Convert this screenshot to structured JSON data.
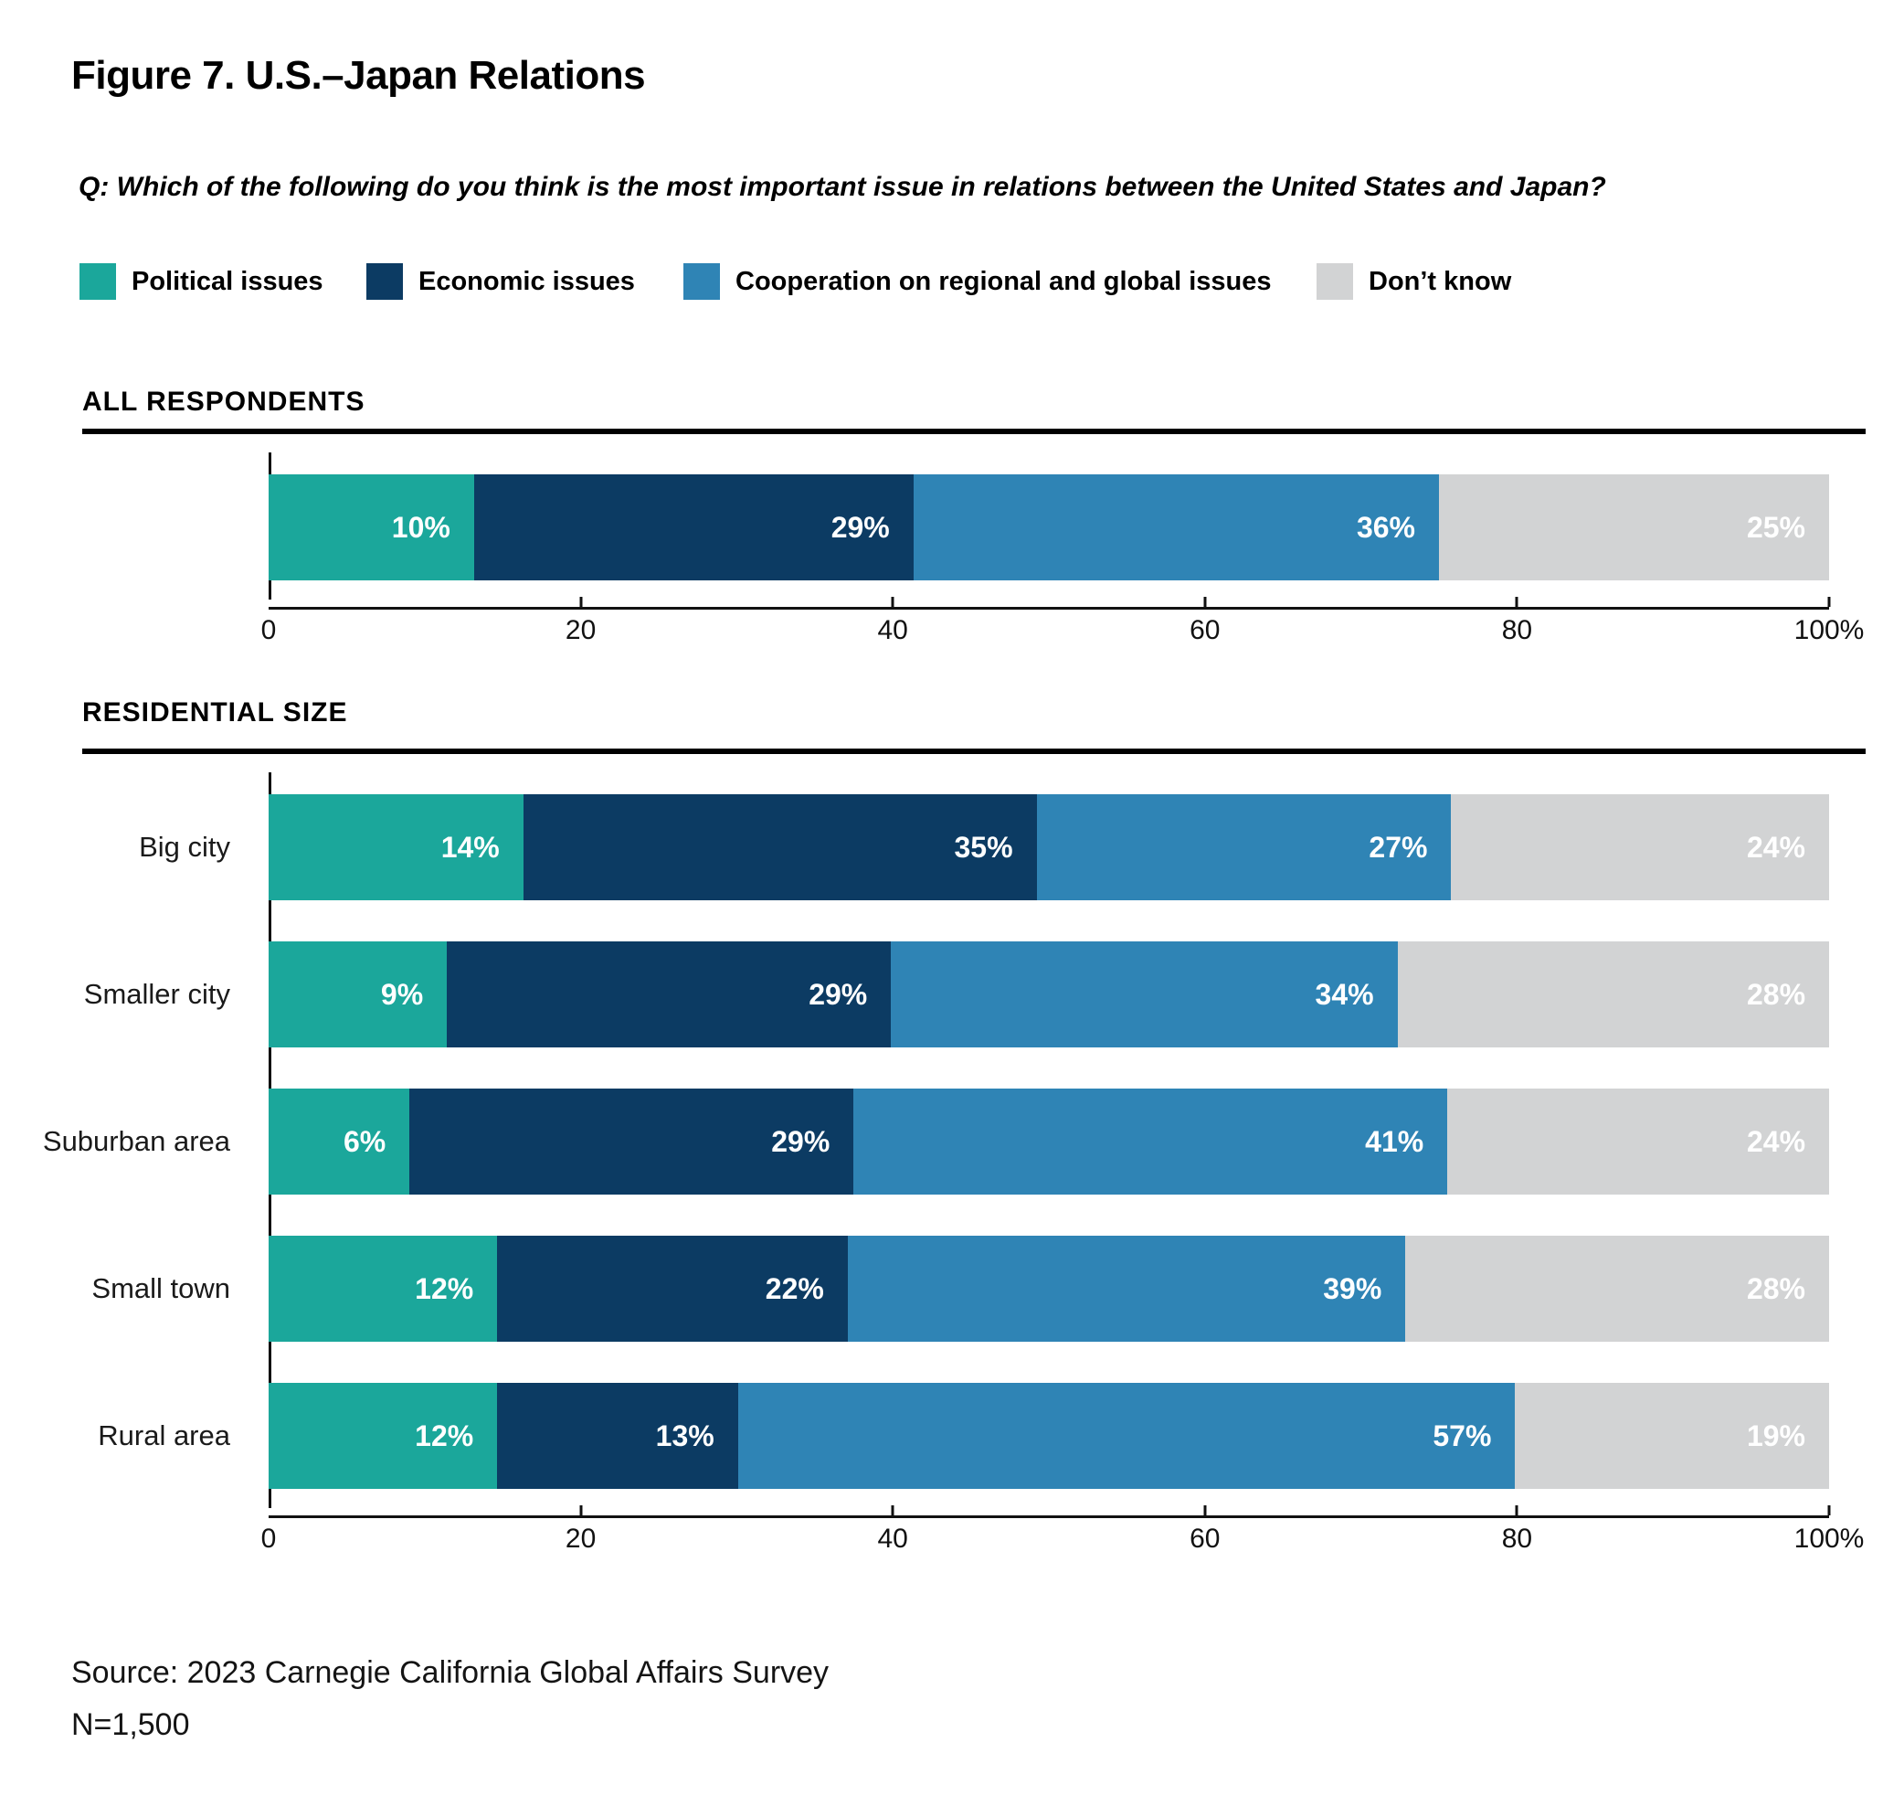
{
  "figure": {
    "title": "Figure 7. U.S.–Japan Relations",
    "question": "Q: Which of the following do you think is the most important issue in relations between the United States and Japan?"
  },
  "legend": {
    "items": [
      {
        "key": "political",
        "label": "Political issues",
        "color": "#1BA79B"
      },
      {
        "key": "economic",
        "label": "Economic issues",
        "color": "#0C3B63"
      },
      {
        "key": "cooperation",
        "label": "Cooperation on regional and global issues",
        "color": "#2F84B5"
      },
      {
        "key": "dont_know",
        "label": "Don’t know",
        "color": "#D2D3D4"
      }
    ]
  },
  "chart_data": [
    {
      "type": "bar",
      "stacked": true,
      "orientation": "horizontal",
      "section": "ALL RESPONDENTS",
      "categories": [
        "All respondents"
      ],
      "series": [
        {
          "name": "Political issues",
          "values": [
            10
          ]
        },
        {
          "name": "Economic issues",
          "values": [
            29
          ]
        },
        {
          "name": "Cooperation on regional and global issues",
          "values": [
            36
          ]
        },
        {
          "name": "Don’t know",
          "values": [
            25
          ]
        }
      ],
      "xlim": [
        0,
        100
      ],
      "ticks": [
        "0",
        "20",
        "40",
        "60",
        "80",
        "100%"
      ],
      "grid": false,
      "legend_position": "top"
    },
    {
      "type": "bar",
      "stacked": true,
      "orientation": "horizontal",
      "section": "RESIDENTIAL SIZE",
      "categories": [
        "Big city",
        "Smaller city",
        "Suburban area",
        "Small town",
        "Rural area"
      ],
      "series": [
        {
          "name": "Political issues",
          "values": [
            14,
            9,
            6,
            12,
            12
          ]
        },
        {
          "name": "Economic issues",
          "values": [
            35,
            29,
            29,
            22,
            13
          ]
        },
        {
          "name": "Cooperation on regional and global issues",
          "values": [
            27,
            34,
            41,
            39,
            57
          ]
        },
        {
          "name": "Don’t know",
          "values": [
            24,
            28,
            24,
            28,
            19
          ]
        }
      ],
      "xlim": [
        0,
        100
      ],
      "ticks": [
        "0",
        "20",
        "40",
        "60",
        "80",
        "100%"
      ],
      "grid": false,
      "legend_position": "top"
    }
  ],
  "source": {
    "line1": "Source: 2023 Carnegie California Global Affairs Survey",
    "line2": "N=1,500"
  }
}
